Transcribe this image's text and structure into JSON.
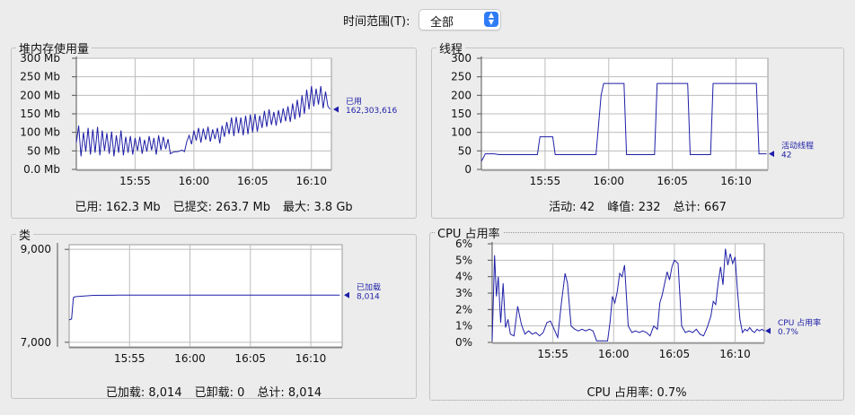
{
  "toolbar": {
    "time_range_label": "时间范围(T):",
    "time_range_value": "全部",
    "chevron_icon": "updown-chevron-icon"
  },
  "colors": {
    "series": "#1f1fa8",
    "grid": "#bdbdbd",
    "plot_bg": "#ffffff",
    "accent": "#2f7bf6"
  },
  "panels": {
    "heap": {
      "title": "堆内存使用量",
      "summary": {
        "used": "已用: 162.3 Mb",
        "committed": "已提交: 263.7 Mb",
        "max": "最大: 3.8 Gb"
      },
      "marker": {
        "label": "已用",
        "value": "162,303,616"
      }
    },
    "threads": {
      "title": "线程",
      "summary": {
        "live": "活动: 42",
        "peak": "峰值: 232",
        "total": "总计: 667"
      },
      "marker": {
        "label": "活动线程",
        "value": "42"
      }
    },
    "classes": {
      "title": "类",
      "summary": {
        "loaded": "已加载: 8,014",
        "unloaded": "已卸载: 0",
        "total": "总计: 8,014"
      },
      "marker": {
        "label": "已加载",
        "value": "8,014"
      }
    },
    "cpu": {
      "title": "CPU 占用率",
      "summary": {
        "usage": "CPU 占用率: 0.7%"
      },
      "marker": {
        "label": "CPU 占用率",
        "value": "0.7%"
      }
    }
  },
  "chart_data": [
    {
      "id": "heap",
      "type": "line",
      "ylabel": "",
      "ylim": [
        0,
        300
      ],
      "y_ticks": [
        0,
        50,
        100,
        150,
        200,
        250,
        300
      ],
      "y_tick_labels": [
        "0.0 Mb",
        "50 Mb",
        "100 Mb",
        "150 Mb",
        "200 Mb",
        "250 Mb",
        "300 Mb"
      ],
      "x_ticks": [
        "15:55",
        "16:00",
        "16:05",
        "16:10"
      ],
      "x_tick_minutes": [
        5,
        10,
        15,
        20
      ],
      "xlim": [
        0,
        21.7
      ],
      "grid": true,
      "series": [
        {
          "x": [
            0.0,
            0.2,
            0.4,
            0.6,
            0.8,
            1.0,
            1.2,
            1.4,
            1.6,
            1.8,
            2.0,
            2.2,
            2.4,
            2.6,
            2.8,
            3.0,
            3.2,
            3.4,
            3.6,
            3.8,
            4.0,
            4.2,
            4.4,
            4.6,
            4.8,
            5.0,
            5.2,
            5.4,
            5.6,
            5.8,
            6.0,
            6.2,
            6.4,
            6.6,
            6.8,
            7.0,
            7.2,
            7.4,
            7.6,
            7.8,
            8.0,
            8.2,
            8.4,
            8.6,
            8.8,
            9.0,
            9.2,
            9.4,
            9.6,
            9.8,
            10.0,
            10.2,
            10.4,
            10.6,
            10.8,
            11.0,
            11.2,
            11.4,
            11.6,
            11.8,
            12.0,
            12.2,
            12.4,
            12.6,
            12.8,
            13.0,
            13.2,
            13.4,
            13.6,
            13.8,
            14.0,
            14.2,
            14.4,
            14.6,
            14.8,
            15.0,
            15.2,
            15.4,
            15.6,
            15.8,
            16.0,
            16.2,
            16.4,
            16.6,
            16.8,
            17.0,
            17.2,
            17.4,
            17.6,
            17.8,
            18.0,
            18.2,
            18.4,
            18.6,
            18.8,
            19.0,
            19.2,
            19.4,
            19.6,
            19.8,
            20.0,
            20.2,
            20.4,
            20.6,
            20.8,
            21.0,
            21.2,
            21.4,
            21.6
          ],
          "values": [
            72,
            118,
            35,
            100,
            48,
            112,
            40,
            108,
            45,
            115,
            38,
            105,
            50,
            98,
            42,
            102,
            35,
            92,
            45,
            105,
            38,
            88,
            45,
            90,
            40,
            85,
            50,
            88,
            42,
            80,
            48,
            90,
            52,
            85,
            40,
            92,
            52,
            88,
            55,
            82,
            42,
            46,
            48,
            48,
            50,
            52,
            48,
            75,
            92,
            68,
            105,
            78,
            112,
            72,
            110,
            80,
            115,
            75,
            108,
            82,
            112,
            70,
            118,
            88,
            128,
            95,
            140,
            90,
            142,
            98,
            140,
            92,
            145,
            95,
            148,
            100,
            150,
            102,
            145,
            112,
            158,
            115,
            162,
            120,
            155,
            118,
            160,
            125,
            165,
            130,
            170,
            128,
            178,
            135,
            188,
            140,
            200,
            150,
            215,
            162,
            225,
            170,
            218,
            175,
            225,
            165,
            210,
            170,
            162
          ]
        }
      ]
    },
    {
      "id": "threads",
      "type": "line",
      "ylim": [
        0,
        300
      ],
      "y_ticks": [
        0,
        50,
        100,
        150,
        200,
        250,
        300
      ],
      "y_tick_labels": [
        "0",
        "50",
        "100",
        "150",
        "200",
        "250",
        "300"
      ],
      "x_ticks": [
        "15:55",
        "16:00",
        "16:05",
        "16:10"
      ],
      "x_tick_minutes": [
        5,
        10,
        15,
        20
      ],
      "xlim": [
        0,
        22.5
      ],
      "grid": true,
      "series": [
        {
          "x": [
            0,
            0.2,
            0.3,
            1.0,
            1.4,
            4.4,
            4.6,
            5.6,
            5.8,
            9.0,
            9.4,
            9.6,
            11.2,
            11.4,
            13.6,
            13.8,
            14.0,
            16.2,
            16.4,
            18.0,
            18.2,
            21.6,
            21.8,
            22.4
          ],
          "values": [
            22,
            34,
            42,
            42,
            40,
            40,
            88,
            88,
            40,
            40,
            200,
            232,
            232,
            40,
            40,
            232,
            232,
            232,
            40,
            40,
            232,
            232,
            42,
            42
          ]
        }
      ]
    },
    {
      "id": "classes",
      "type": "line",
      "ylim": [
        6900,
        9100
      ],
      "y_ticks": [
        7000,
        9000
      ],
      "y_tick_labels": [
        "7,000",
        "9,000"
      ],
      "x_ticks": [
        "15:55",
        "16:00",
        "16:05",
        "16:10"
      ],
      "x_tick_minutes": [
        5,
        10,
        15,
        20
      ],
      "xlim": [
        0,
        22.6
      ],
      "grid": true,
      "series": [
        {
          "x": [
            0,
            0.2,
            0.35,
            0.5,
            1.0,
            2.0,
            4.0,
            8.0,
            22.4
          ],
          "values": [
            7480,
            7500,
            7960,
            7980,
            7990,
            8010,
            8014,
            8014,
            8014
          ]
        }
      ]
    },
    {
      "id": "cpu",
      "type": "line",
      "ylim": [
        0,
        6
      ],
      "y_ticks": [
        0,
        1,
        2,
        3,
        4,
        5,
        6
      ],
      "y_tick_labels": [
        "0%",
        "1%",
        "2%",
        "3%",
        "4%",
        "5%",
        "6%"
      ],
      "x_ticks": [
        "15:55",
        "16:00",
        "16:05",
        "16:10"
      ],
      "x_tick_minutes": [
        5,
        10,
        15,
        20
      ],
      "xlim": [
        0,
        22.4
      ],
      "grid": true,
      "series": [
        {
          "x": [
            0.0,
            0.2,
            0.35,
            0.5,
            0.7,
            0.9,
            1.1,
            1.3,
            1.5,
            1.8,
            2.1,
            2.4,
            2.7,
            3.0,
            3.3,
            3.6,
            3.9,
            4.2,
            4.5,
            4.8,
            5.1,
            5.4,
            5.7,
            6.0,
            6.2,
            6.5,
            6.8,
            7.1,
            7.4,
            7.7,
            8.0,
            8.3,
            8.6,
            8.9,
            9.2,
            9.5,
            9.7,
            9.9,
            10.1,
            10.3,
            10.5,
            10.7,
            10.9,
            11.2,
            11.5,
            11.8,
            12.1,
            12.4,
            12.7,
            13.0,
            13.3,
            13.6,
            13.8,
            14.0,
            14.2,
            14.4,
            14.6,
            14.8,
            15.0,
            15.3,
            15.6,
            15.9,
            16.2,
            16.5,
            16.8,
            17.1,
            17.4,
            17.7,
            18.0,
            18.2,
            18.4,
            18.6,
            18.8,
            19.0,
            19.2,
            19.4,
            19.6,
            19.8,
            20.0,
            20.2,
            20.4,
            20.6,
            20.8,
            21.0,
            21.2,
            21.4,
            21.6,
            21.8,
            22.0,
            22.2,
            22.4
          ],
          "values": [
            0.1,
            5.3,
            2.8,
            4.0,
            1.2,
            3.6,
            0.9,
            1.4,
            0.5,
            0.4,
            2.2,
            1.1,
            0.5,
            0.7,
            0.5,
            0.6,
            0.4,
            0.6,
            1.2,
            1.3,
            0.8,
            0.3,
            2.4,
            4.2,
            3.6,
            1.0,
            0.8,
            0.7,
            0.8,
            0.7,
            0.8,
            0.7,
            0.1,
            0.1,
            0.1,
            0.1,
            1.2,
            2.8,
            2.4,
            3.1,
            4.2,
            4.0,
            4.7,
            1.0,
            0.6,
            0.7,
            0.6,
            0.7,
            0.6,
            0.4,
            1.0,
            0.8,
            2.4,
            2.9,
            3.6,
            4.3,
            3.8,
            4.6,
            5.0,
            4.8,
            1.0,
            0.6,
            0.7,
            0.6,
            0.8,
            0.5,
            0.4,
            0.9,
            1.6,
            2.5,
            2.3,
            3.6,
            4.6,
            3.5,
            5.7,
            4.7,
            5.4,
            4.8,
            5.2,
            3.1,
            1.4,
            0.6,
            0.8,
            0.7,
            0.9,
            0.7,
            0.6,
            0.8,
            0.7,
            0.8,
            0.7
          ]
        }
      ]
    }
  ]
}
